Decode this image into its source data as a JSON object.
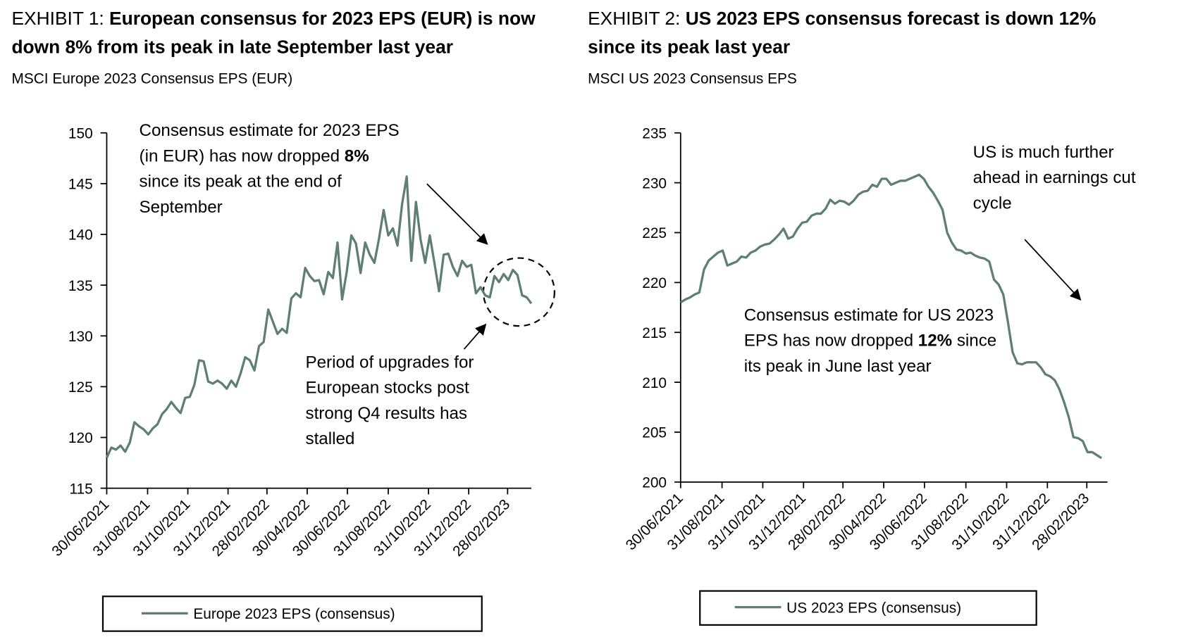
{
  "chart_data": [
    {
      "type": "line",
      "exhibit": "EXHIBIT 1:",
      "title": "European consensus for 2023 EPS (EUR) is now down 8% from its peak in late September last year",
      "subtitle": "MSCI Europe 2023 Consensus EPS (EUR)",
      "annotations": [
        {
          "runs": [
            {
              "text": "Consensus estimate for 2023 EPS (in EUR) has now dropped "
            },
            {
              "text": "8%",
              "bold": true
            },
            {
              "text": " since its peak at the end of September"
            }
          ]
        },
        {
          "runs": [
            {
              "text": "Period of upgrades for European stocks post strong Q4 results has stalled"
            }
          ]
        }
      ],
      "x": [
        "2021-06-30",
        "2021-07-07",
        "2021-07-14",
        "2021-07-21",
        "2021-07-28",
        "2021-08-04",
        "2021-08-11",
        "2021-08-18",
        "2021-08-25",
        "2021-09-01",
        "2021-09-08",
        "2021-09-15",
        "2021-09-22",
        "2021-09-29",
        "2021-10-06",
        "2021-10-13",
        "2021-10-20",
        "2021-10-27",
        "2021-11-03",
        "2021-11-10",
        "2021-11-17",
        "2021-11-24",
        "2021-12-01",
        "2021-12-08",
        "2021-12-15",
        "2021-12-22",
        "2021-12-29",
        "2022-01-05",
        "2022-01-12",
        "2022-01-19",
        "2022-01-26",
        "2022-02-02",
        "2022-02-09",
        "2022-02-16",
        "2022-02-23",
        "2022-03-02",
        "2022-03-09",
        "2022-03-16",
        "2022-03-23",
        "2022-03-30",
        "2022-04-06",
        "2022-04-13",
        "2022-04-20",
        "2022-04-27",
        "2022-05-04",
        "2022-05-11",
        "2022-05-18",
        "2022-05-25",
        "2022-06-01",
        "2022-06-08",
        "2022-06-15",
        "2022-06-22",
        "2022-06-29",
        "2022-07-06",
        "2022-07-13",
        "2022-07-20",
        "2022-07-27",
        "2022-08-03",
        "2022-08-10",
        "2022-08-17",
        "2022-08-24",
        "2022-08-31",
        "2022-09-07",
        "2022-09-14",
        "2022-09-21",
        "2022-09-28",
        "2022-10-05",
        "2022-10-12",
        "2022-10-19",
        "2022-10-26",
        "2022-11-02",
        "2022-11-09",
        "2022-11-16",
        "2022-11-23",
        "2022-11-30",
        "2022-12-07",
        "2022-12-14",
        "2022-12-21",
        "2022-12-28",
        "2023-01-04",
        "2023-01-11",
        "2023-01-18",
        "2023-01-25",
        "2023-02-01",
        "2023-02-08",
        "2023-02-15",
        "2023-02-22",
        "2023-03-01",
        "2023-03-08",
        "2023-03-15",
        "2023-03-22",
        "2023-03-29",
        "2023-04-05"
      ],
      "series": [
        {
          "name": "Europe 2023 EPS (consensus)",
          "color": "#5f7f75",
          "values": [
            118.0,
            119.0,
            118.8,
            119.2,
            118.6,
            119.5,
            121.5,
            121.1,
            120.8,
            120.3,
            120.9,
            121.3,
            122.3,
            122.8,
            123.5,
            122.9,
            122.4,
            123.9,
            124.0,
            125.2,
            127.6,
            127.5,
            125.5,
            125.3,
            125.6,
            125.3,
            124.8,
            125.6,
            125.0,
            126.3,
            127.9,
            127.6,
            126.6,
            129.0,
            129.4,
            132.6,
            131.4,
            130.2,
            130.7,
            130.3,
            133.7,
            134.2,
            133.8,
            136.7,
            135.9,
            135.4,
            135.5,
            134.1,
            136.3,
            135.7,
            139.2,
            133.6,
            136.3,
            139.9,
            139.1,
            136.2,
            139.2,
            138.0,
            137.2,
            139.6,
            142.4,
            139.9,
            140.6,
            138.9,
            143.0,
            145.7,
            137.4,
            143.2,
            139.5,
            137.2,
            139.9,
            137.2,
            134.4,
            138.0,
            138.1,
            136.8,
            135.9,
            137.4,
            136.8,
            137.0,
            134.2,
            134.8,
            134.0,
            133.8,
            135.9,
            135.3,
            136.1,
            135.5,
            136.5,
            136.0,
            134.0,
            133.8,
            133.2
          ]
        }
      ],
      "xlim": [
        "2021-06-30",
        "2023-04-05"
      ],
      "xticks": [
        {
          "value": "2021-06-30",
          "label": "30/06/2021"
        },
        {
          "value": "2021-08-31",
          "label": "31/08/2021"
        },
        {
          "value": "2021-10-31",
          "label": "31/10/2021"
        },
        {
          "value": "2021-12-31",
          "label": "31/12/2021"
        },
        {
          "value": "2022-02-28",
          "label": "28/02/2022"
        },
        {
          "value": "2022-04-30",
          "label": "30/04/2022"
        },
        {
          "value": "2022-06-30",
          "label": "30/06/2022"
        },
        {
          "value": "2022-08-31",
          "label": "31/08/2022"
        },
        {
          "value": "2022-10-31",
          "label": "31/10/2022"
        },
        {
          "value": "2022-12-31",
          "label": "31/12/2022"
        },
        {
          "value": "2023-02-28",
          "label": "28/02/2023"
        }
      ],
      "ylim": [
        115,
        150
      ],
      "yticks": [
        115,
        120,
        125,
        130,
        135,
        140,
        145,
        150
      ]
    },
    {
      "type": "line",
      "exhibit": "EXHIBIT 2:",
      "title": "US 2023 EPS consensus forecast is down 12% since its peak last year",
      "subtitle": "MSCI US 2023 Consensus EPS",
      "annotations": [
        {
          "runs": [
            {
              "text": "US is much further ahead in earnings cut cycle"
            }
          ]
        },
        {
          "runs": [
            {
              "text": "Consensus estimate for US 2023 EPS has now dropped "
            },
            {
              "text": "12%",
              "bold": true
            },
            {
              "text": " since its peak in June last year"
            }
          ]
        }
      ],
      "x": [
        "2021-06-30",
        "2021-07-07",
        "2021-07-14",
        "2021-07-21",
        "2021-07-28",
        "2021-08-04",
        "2021-08-11",
        "2021-08-18",
        "2021-08-25",
        "2021-09-01",
        "2021-09-08",
        "2021-09-15",
        "2021-09-22",
        "2021-09-29",
        "2021-10-06",
        "2021-10-13",
        "2021-10-20",
        "2021-10-27",
        "2021-11-03",
        "2021-11-10",
        "2021-11-17",
        "2021-11-24",
        "2021-12-01",
        "2021-12-08",
        "2021-12-15",
        "2021-12-22",
        "2021-12-29",
        "2022-01-05",
        "2022-01-12",
        "2022-01-19",
        "2022-01-26",
        "2022-02-02",
        "2022-02-09",
        "2022-02-16",
        "2022-02-23",
        "2022-03-02",
        "2022-03-09",
        "2022-03-16",
        "2022-03-23",
        "2022-03-30",
        "2022-04-06",
        "2022-04-13",
        "2022-04-20",
        "2022-04-27",
        "2022-05-04",
        "2022-05-11",
        "2022-05-18",
        "2022-05-25",
        "2022-06-01",
        "2022-06-08",
        "2022-06-15",
        "2022-06-22",
        "2022-06-29",
        "2022-07-06",
        "2022-07-13",
        "2022-07-20",
        "2022-07-27",
        "2022-08-03",
        "2022-08-10",
        "2022-08-17",
        "2022-08-24",
        "2022-08-31",
        "2022-09-07",
        "2022-09-14",
        "2022-09-21",
        "2022-09-28",
        "2022-10-05",
        "2022-10-12",
        "2022-10-19",
        "2022-10-26",
        "2022-11-02",
        "2022-11-09",
        "2022-11-16",
        "2022-11-23",
        "2022-11-30",
        "2022-12-07",
        "2022-12-14",
        "2022-12-21",
        "2022-12-28",
        "2023-01-04",
        "2023-01-11",
        "2023-01-18",
        "2023-01-25",
        "2023-02-01",
        "2023-02-08",
        "2023-02-15",
        "2023-02-22",
        "2023-03-01",
        "2023-03-08",
        "2023-03-15",
        "2023-03-22"
      ],
      "series": [
        {
          "name": "US 2023 EPS (consensus)",
          "color": "#5f7f75",
          "values": [
            218.0,
            218.3,
            218.5,
            218.8,
            219.0,
            221.3,
            222.2,
            222.6,
            223.0,
            223.2,
            221.7,
            221.9,
            222.1,
            222.6,
            222.5,
            223.0,
            223.2,
            223.6,
            223.8,
            223.9,
            224.3,
            224.8,
            225.4,
            224.4,
            224.6,
            225.4,
            226.0,
            226.1,
            226.7,
            226.9,
            226.9,
            227.4,
            228.3,
            227.9,
            228.2,
            228.1,
            227.8,
            228.2,
            228.8,
            229.1,
            229.2,
            229.8,
            229.6,
            230.4,
            230.4,
            229.8,
            230.0,
            230.2,
            230.2,
            230.4,
            230.6,
            230.8,
            230.4,
            229.6,
            229.0,
            228.2,
            227.3,
            225.0,
            224.0,
            223.3,
            223.2,
            222.9,
            223.0,
            222.7,
            222.5,
            222.4,
            222.1,
            220.3,
            219.8,
            218.8,
            216.0,
            213.0,
            211.9,
            211.8,
            212.0,
            212.0,
            212.0,
            211.5,
            210.8,
            210.6,
            210.2,
            209.3,
            208.0,
            206.5,
            204.5,
            204.4,
            204.1,
            203.0,
            203.0,
            202.7,
            202.4
          ]
        }
      ],
      "xlim": [
        "2021-06-30",
        "2023-03-31"
      ],
      "xticks": [
        {
          "value": "2021-06-30",
          "label": "30/06/2021"
        },
        {
          "value": "2021-08-31",
          "label": "31/08/2021"
        },
        {
          "value": "2021-10-31",
          "label": "31/10/2021"
        },
        {
          "value": "2021-12-31",
          "label": "31/12/2021"
        },
        {
          "value": "2022-02-28",
          "label": "28/02/2022"
        },
        {
          "value": "2022-04-30",
          "label": "30/04/2022"
        },
        {
          "value": "2022-06-30",
          "label": "30/06/2022"
        },
        {
          "value": "2022-08-31",
          "label": "31/08/2022"
        },
        {
          "value": "2022-10-31",
          "label": "31/10/2022"
        },
        {
          "value": "2022-12-31",
          "label": "31/12/2022"
        },
        {
          "value": "2023-02-28",
          "label": "28/02/2023"
        }
      ],
      "ylim": [
        200,
        235
      ],
      "yticks": [
        200,
        205,
        210,
        215,
        220,
        225,
        230,
        235
      ]
    }
  ]
}
